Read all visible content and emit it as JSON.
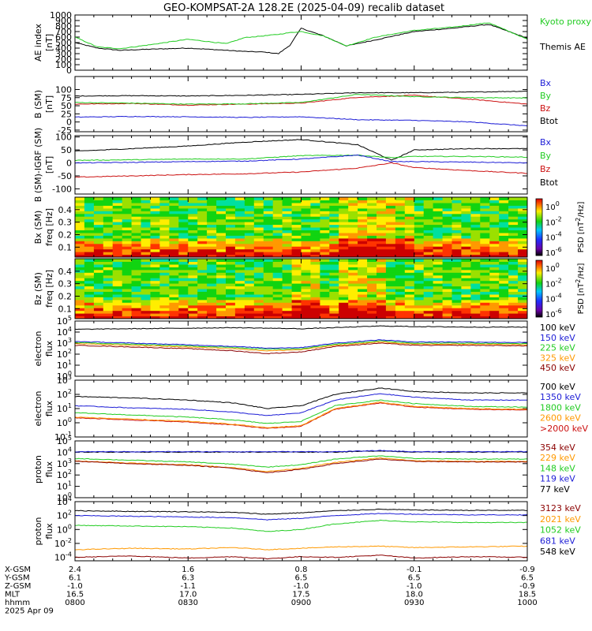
{
  "title": "GEO-KOMPSAT-2A 128.2E (2025-04-09) recalib dataset",
  "colors": {
    "black": "#000000",
    "blue": "#1c1cd6",
    "green": "#22cc22",
    "red": "#cc1111",
    "orange": "#ff9900",
    "darkred": "#8b0000"
  },
  "chart_data": [
    {
      "type": "line",
      "id": "ae",
      "ylabel_lines": [
        "AE index",
        "[nT]"
      ],
      "ylim": [
        0,
        1000
      ],
      "yscale": "linear",
      "yticks": [
        0,
        100,
        200,
        300,
        400,
        500,
        600,
        700,
        800,
        900,
        1000
      ],
      "ytick_labels": [
        "0",
        "100",
        "200",
        "300",
        "400",
        "500",
        "600",
        "700",
        "800",
        "900",
        "1000"
      ],
      "x_hours": [
        8.0,
        8.1,
        8.2,
        8.33,
        8.5,
        8.67,
        8.75,
        8.83,
        8.9,
        8.95,
        9.0,
        9.1,
        9.2,
        9.33,
        9.5,
        9.67,
        9.83,
        10.0
      ],
      "series": [
        {
          "name": "Kyoto proxy AE",
          "color": "green",
          "values": [
            600,
            420,
            390,
            460,
            560,
            480,
            590,
            620,
            650,
            680,
            700,
            620,
            440,
            600,
            720,
            780,
            860,
            560
          ]
        },
        {
          "name": "Themis AE",
          "color": "black",
          "values": [
            500,
            400,
            360,
            380,
            400,
            360,
            340,
            330,
            300,
            450,
            760,
            620,
            440,
            550,
            700,
            760,
            830,
            580
          ]
        }
      ],
      "legend_placement": "right"
    },
    {
      "type": "line",
      "id": "b-sm",
      "ylabel_lines": [
        "B (SM)",
        "[nT]"
      ],
      "ylim": [
        -30,
        140
      ],
      "yscale": "linear",
      "yticks": [
        -25,
        0,
        25,
        50,
        75,
        100
      ],
      "ytick_labels": [
        "-25",
        "0",
        "25",
        "50",
        "75",
        "100"
      ],
      "x_hours": [
        8.0,
        8.25,
        8.5,
        8.75,
        9.0,
        9.25,
        9.5,
        9.75,
        10.0
      ],
      "series": [
        {
          "name": "Bx",
          "color": "blue",
          "values": [
            15,
            17,
            16,
            14,
            16,
            7,
            5,
            0,
            -12
          ]
        },
        {
          "name": "By",
          "color": "green",
          "values": [
            60,
            58,
            55,
            56,
            60,
            85,
            78,
            75,
            74
          ]
        },
        {
          "name": "Bz",
          "color": "red",
          "values": [
            55,
            57,
            52,
            55,
            58,
            76,
            82,
            70,
            55
          ]
        },
        {
          "name": "Btot",
          "color": "black",
          "values": [
            80,
            81,
            80,
            82,
            85,
            90,
            90,
            92,
            95
          ]
        }
      ],
      "legend_placement": "right"
    },
    {
      "type": "line",
      "id": "b-sm-igrf",
      "ylabel_lines": [
        "B (SM)-IGRF (SM)",
        "[nT]"
      ],
      "ylim": [
        -120,
        105
      ],
      "yscale": "linear",
      "yticks": [
        -100,
        -50,
        0,
        50,
        100
      ],
      "ytick_labels": [
        "-100",
        "-50",
        "0",
        "50",
        "100"
      ],
      "x_hours": [
        8.0,
        8.25,
        8.5,
        8.75,
        9.0,
        9.25,
        9.4,
        9.5,
        9.75,
        10.0
      ],
      "series": [
        {
          "name": "Bx",
          "color": "blue",
          "values": [
            0,
            2,
            5,
            7,
            15,
            30,
            5,
            5,
            3,
            0
          ]
        },
        {
          "name": "By",
          "color": "green",
          "values": [
            10,
            12,
            15,
            15,
            28,
            30,
            20,
            25,
            25,
            22
          ]
        },
        {
          "name": "Bz",
          "color": "red",
          "values": [
            -55,
            -50,
            -45,
            -42,
            -35,
            -20,
            0,
            -18,
            -30,
            -40
          ]
        },
        {
          "name": "Btot",
          "color": "black",
          "values": [
            45,
            55,
            65,
            80,
            90,
            70,
            10,
            50,
            55,
            55
          ]
        }
      ],
      "legend_placement": "right"
    },
    {
      "type": "heatmap",
      "id": "spec-bx",
      "ylabel_lines": [
        "Bx (SM)",
        "freq [Hz]"
      ],
      "ylim": [
        0.02,
        0.5
      ],
      "yticks": [
        0.1,
        0.2,
        0.3,
        0.4
      ],
      "ytick_labels": [
        "0.1",
        "0.2",
        "0.3",
        "0.4"
      ],
      "colorbar_title": "PSD [nT^2/Hz]",
      "colorbar_ticks": [
        "10^0",
        "10^-2",
        "10^-4",
        "10^-6"
      ],
      "high_power_times_hours": [
        9.2,
        9.25,
        9.4
      ]
    },
    {
      "type": "heatmap",
      "id": "spec-bz",
      "ylabel_lines": [
        "Bz (SM)",
        "freq [Hz]"
      ],
      "ylim": [
        0.02,
        0.5
      ],
      "yticks": [
        0.1,
        0.2,
        0.3,
        0.4
      ],
      "ytick_labels": [
        "0.1",
        "0.2",
        "0.3",
        "0.4"
      ],
      "colorbar_title": "PSD [nT^2/Hz]",
      "colorbar_ticks": [
        "10^0",
        "10^-2",
        "10^-4",
        "10^-6"
      ],
      "high_power_times_hours": [
        9.0,
        9.2,
        9.3
      ]
    },
    {
      "type": "line",
      "id": "electron-low",
      "ylabel_lines": [
        "electron",
        "flux"
      ],
      "yscale": "log",
      "ylim_exp": [
        0,
        5
      ],
      "ytick_exps": [
        0,
        1,
        2,
        3,
        4,
        5
      ],
      "x_hours": [
        8.0,
        8.25,
        8.5,
        8.7,
        8.85,
        9.0,
        9.15,
        9.35,
        9.5,
        9.75,
        10.0
      ],
      "series": [
        {
          "name": "100 keV",
          "color": "black",
          "log_values": [
            4.25,
            4.3,
            4.35,
            4.4,
            4.35,
            4.3,
            4.4,
            4.55,
            4.5,
            4.45,
            4.45
          ]
        },
        {
          "name": "150 keV",
          "color": "blue",
          "log_values": [
            3.15,
            3.0,
            2.85,
            2.7,
            2.55,
            2.6,
            3.0,
            3.3,
            3.1,
            3.1,
            3.05
          ]
        },
        {
          "name": "225 keV",
          "color": "green",
          "log_values": [
            3.05,
            2.9,
            2.75,
            2.6,
            2.45,
            2.5,
            2.9,
            3.2,
            3.0,
            3.0,
            2.95
          ]
        },
        {
          "name": "325 keV",
          "color": "orange",
          "log_values": [
            2.95,
            2.8,
            2.65,
            2.5,
            2.3,
            2.4,
            2.8,
            3.1,
            2.9,
            2.9,
            2.85
          ]
        },
        {
          "name": "450 keV",
          "color": "darkred",
          "log_values": [
            2.8,
            2.65,
            2.5,
            2.3,
            2.05,
            2.2,
            2.7,
            3.0,
            2.8,
            2.8,
            2.75
          ]
        }
      ],
      "legend_placement": "right"
    },
    {
      "type": "line",
      "id": "electron-high",
      "ylabel_lines": [
        "electron",
        "flux"
      ],
      "yscale": "log",
      "ylim_exp": [
        -1,
        3
      ],
      "ytick_exps": [
        -1,
        0,
        1,
        2,
        3
      ],
      "x_hours": [
        8.0,
        8.25,
        8.5,
        8.7,
        8.85,
        9.0,
        9.15,
        9.35,
        9.5,
        9.75,
        10.0
      ],
      "series": [
        {
          "name": "700 keV",
          "color": "black",
          "log_values": [
            1.85,
            1.75,
            1.6,
            1.4,
            1.0,
            1.2,
            2.0,
            2.45,
            2.2,
            2.1,
            2.1
          ]
        },
        {
          "name": "1350 keV",
          "color": "blue",
          "log_values": [
            1.2,
            1.05,
            0.95,
            0.75,
            0.5,
            0.7,
            1.6,
            2.05,
            1.8,
            1.6,
            1.6
          ]
        },
        {
          "name": "1800 keV",
          "color": "green",
          "log_values": [
            0.7,
            0.55,
            0.4,
            0.2,
            -0.05,
            0.1,
            1.2,
            1.6,
            1.35,
            1.15,
            1.1
          ]
        },
        {
          "name": "2600 keV",
          "color": "orange",
          "log_values": [
            0.4,
            0.25,
            0.1,
            -0.1,
            -0.35,
            -0.2,
            1.0,
            1.45,
            1.15,
            1.0,
            0.95
          ]
        },
        {
          "name": ">2000 keV",
          "color": "red",
          "log_values": [
            0.35,
            0.2,
            0.05,
            -0.15,
            -0.4,
            -0.25,
            0.95,
            1.4,
            1.1,
            0.95,
            0.9
          ]
        }
      ],
      "legend_placement": "right"
    },
    {
      "type": "line",
      "id": "proton-low",
      "ylabel_lines": [
        "proton",
        "flux"
      ],
      "yscale": "log",
      "ylim_exp": [
        0,
        5
      ],
      "ytick_exps": [
        0,
        1,
        2,
        3,
        4,
        5
      ],
      "x_hours": [
        8.0,
        8.25,
        8.5,
        8.7,
        8.85,
        9.0,
        9.15,
        9.35,
        9.5,
        9.75,
        10.0
      ],
      "series": [
        {
          "name": "354 keV",
          "color": "darkred",
          "log_values": [
            3.2,
            3.0,
            2.85,
            2.6,
            2.2,
            2.5,
            3.0,
            3.4,
            3.2,
            3.15,
            3.15
          ]
        },
        {
          "name": "229 keV",
          "color": "orange",
          "log_values": [
            3.25,
            3.05,
            2.9,
            2.65,
            2.3,
            2.6,
            3.1,
            3.5,
            3.25,
            3.2,
            3.2
          ]
        },
        {
          "name": "148 keV",
          "color": "green",
          "log_values": [
            3.45,
            3.3,
            3.15,
            2.95,
            2.7,
            2.9,
            3.4,
            3.7,
            3.45,
            3.4,
            3.4
          ]
        },
        {
          "name": "119 keV",
          "color": "blue",
          "log_values": [
            4.05,
            4.05,
            4.05,
            4.05,
            4.05,
            4.05,
            4.05,
            4.15,
            4.05,
            4.05,
            4.05
          ]
        },
        {
          "name": "77 keV",
          "color": "black",
          "log_values": [
            4.02,
            4.02,
            4.02,
            4.02,
            4.02,
            4.02,
            4.02,
            4.12,
            4.02,
            4.02,
            4.02
          ]
        }
      ],
      "legend_placement": "right"
    },
    {
      "type": "line",
      "id": "proton-high",
      "ylabel_lines": [
        "proton",
        "flux"
      ],
      "yscale": "log",
      "ylim_exp": [
        -4.5,
        4
      ],
      "ytick_exps": [
        -4,
        -2,
        0,
        2,
        4
      ],
      "x_hours": [
        8.0,
        8.25,
        8.5,
        8.7,
        8.85,
        9.0,
        9.15,
        9.35,
        9.5,
        9.75,
        10.0
      ],
      "series": [
        {
          "name": "3123 keV",
          "color": "darkred",
          "log_values": [
            -4.0,
            -3.8,
            -4.1,
            -3.9,
            -4.2,
            -3.9,
            -4.0,
            -3.7,
            -4.1,
            -3.9,
            -4.0
          ]
        },
        {
          "name": "2021 keV",
          "color": "orange",
          "log_values": [
            -2.9,
            -2.7,
            -2.8,
            -2.6,
            -2.9,
            -2.7,
            -2.5,
            -2.4,
            -2.6,
            -2.5,
            -2.4
          ]
        },
        {
          "name": "1052 keV",
          "color": "green",
          "log_values": [
            0.6,
            0.5,
            0.4,
            0.2,
            -0.3,
            0.0,
            0.8,
            1.3,
            1.1,
            1.0,
            1.0
          ]
        },
        {
          "name": "681 keV",
          "color": "blue",
          "log_values": [
            2.0,
            1.9,
            1.8,
            1.7,
            1.4,
            1.6,
            2.0,
            2.3,
            2.2,
            2.1,
            2.1
          ]
        },
        {
          "name": "548 keV",
          "color": "black",
          "log_values": [
            2.7,
            2.6,
            2.55,
            2.45,
            2.2,
            2.4,
            2.7,
            2.9,
            2.8,
            2.75,
            2.75
          ]
        }
      ],
      "legend_placement": "right"
    }
  ],
  "x_axis": {
    "tick_hours": [
      8.0,
      8.5,
      9.0,
      9.5,
      10.0
    ],
    "rows": [
      {
        "label": "X-GSM",
        "values": [
          "2.4",
          "1.6",
          "0.8",
          "-0.1",
          "-0.9"
        ]
      },
      {
        "label": "Y-GSM",
        "values": [
          "6.1",
          "6.3",
          "6.5",
          "6.5",
          "6.5"
        ]
      },
      {
        "label": "Z-GSM",
        "values": [
          "-1.0",
          "-1.1",
          "-1.0",
          "-1.0",
          "-0.9"
        ]
      },
      {
        "label": "MLT",
        "values": [
          "16.5",
          "17.0",
          "17.5",
          "18.0",
          "18.5"
        ]
      },
      {
        "label": "hhmm",
        "values": [
          "0800",
          "0830",
          "0900",
          "0930",
          "1000"
        ]
      }
    ],
    "date_label": "2025 Apr 09"
  }
}
